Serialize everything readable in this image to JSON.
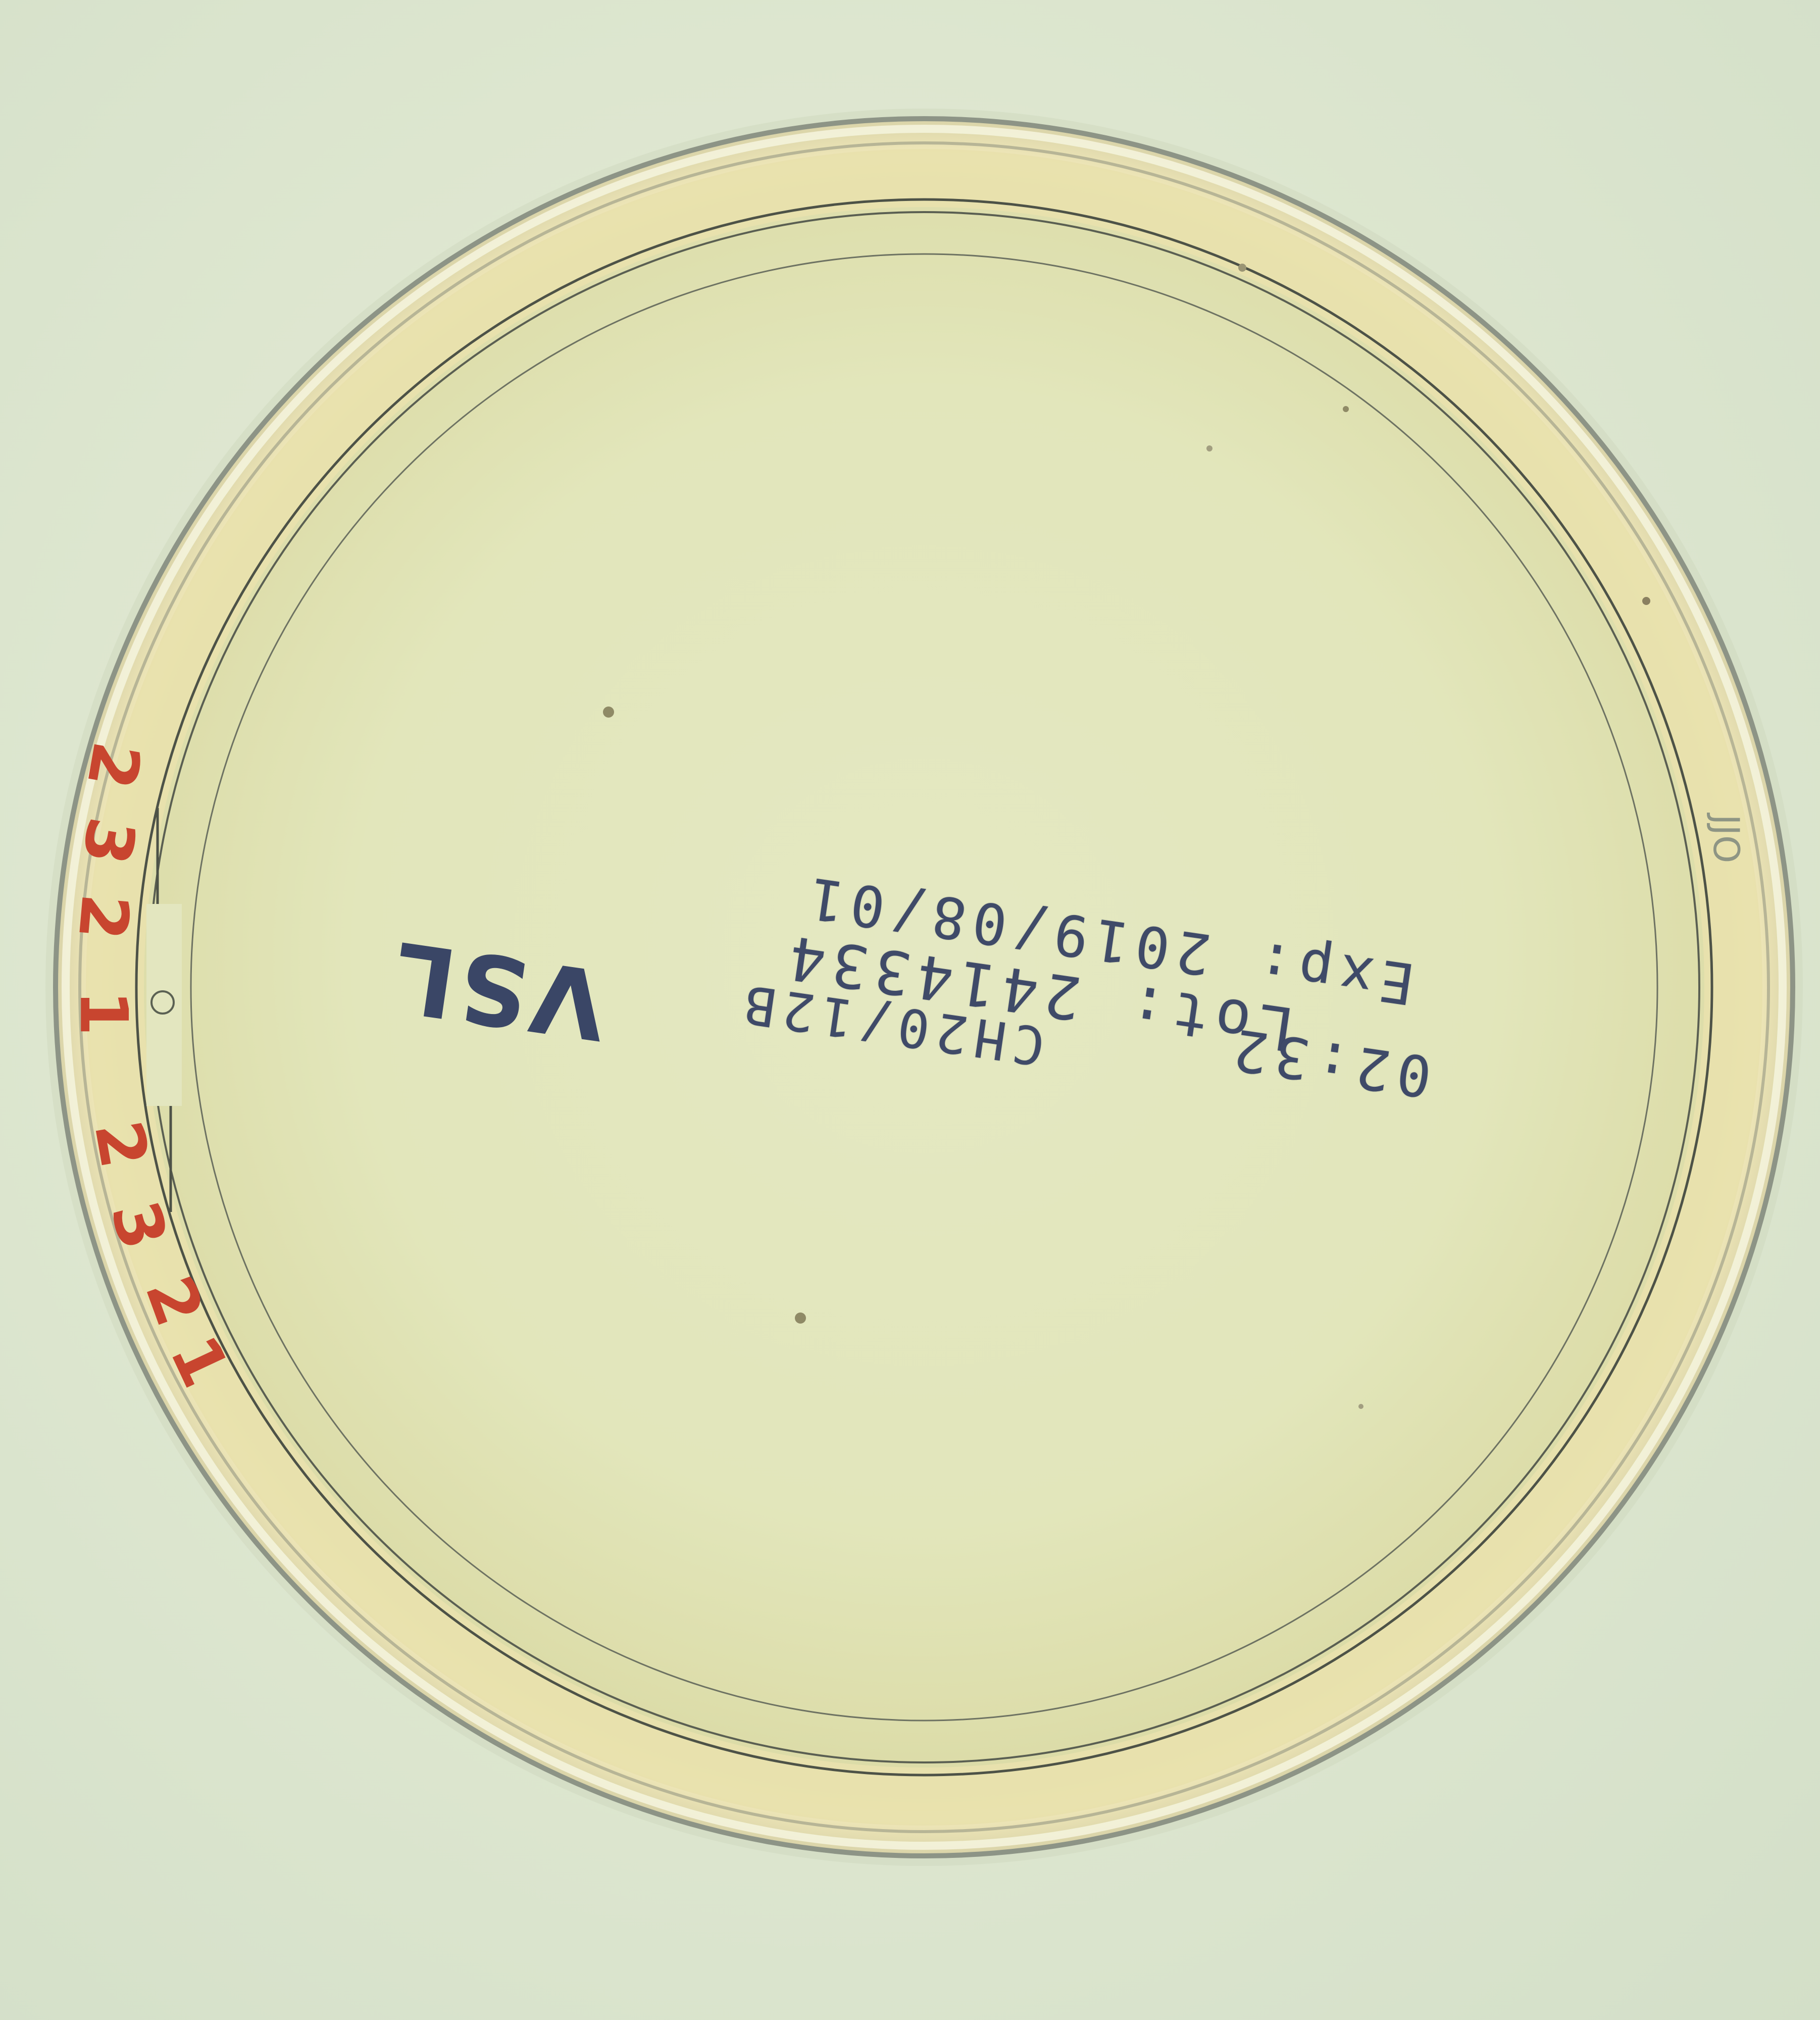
{
  "image": {
    "kind": "petri-dish-photo",
    "medium_color": "#e3e6b8",
    "rim_color": "#c9c5a2",
    "ink_color": "#3f4a68",
    "mark_color": "#c8452f"
  },
  "label": {
    "expiry": "Exp: 2019/08/01",
    "lot": "Lot: 2414334",
    "product_code": "CH20/12B",
    "time": "02:32",
    "brand": "VSL",
    "rim_code": "JJO"
  },
  "rim_marks": [
    "2",
    "3",
    "2",
    "1",
    "2",
    "3",
    "2",
    "1"
  ]
}
